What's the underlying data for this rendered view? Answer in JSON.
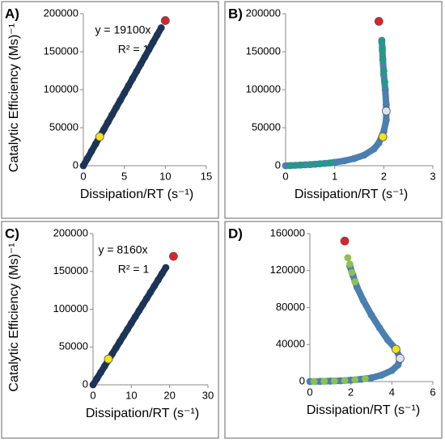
{
  "chart_data": [
    {
      "type": "scatter",
      "panel_label": "A)",
      "ylabel": "Catalytic  Efficiency (Ms)⁻¹",
      "xlabel": "Dissipation/RT (s⁻¹)",
      "annotations": [
        "y = 19100x",
        "R² = 1"
      ],
      "xlim": [
        0,
        15
      ],
      "xticks": [
        0,
        5,
        10,
        15
      ],
      "ylim": [
        0,
        200000
      ],
      "yticks": [
        0,
        50000,
        100000,
        150000,
        200000
      ],
      "series": [
        {
          "color": "#1c3557",
          "line": true,
          "x": [
            0,
            0.5,
            1,
            1.5,
            2,
            2.5,
            3,
            3.5,
            4,
            4.5,
            5,
            5.5,
            6,
            6.5,
            7,
            7.5,
            8,
            8.5,
            9,
            9.5
          ],
          "values": [
            0,
            9550,
            19100,
            28650,
            38200,
            47750,
            57300,
            66850,
            76400,
            85950,
            95500,
            105050,
            114600,
            124150,
            133700,
            143250,
            152800,
            162350,
            171900,
            181450
          ]
        },
        {
          "color": "#f2e21b",
          "x": [
            2
          ],
          "values": [
            38200
          ]
        },
        {
          "color": "#e0202a",
          "x": [
            10
          ],
          "values": [
            191000
          ]
        }
      ]
    },
    {
      "type": "scatter",
      "panel_label": "B)",
      "xlabel": "Dissipation/RT (s⁻¹)",
      "xlim": [
        0,
        3
      ],
      "xticks": [
        0,
        1,
        2,
        3
      ],
      "ylim": [
        0,
        200000
      ],
      "yticks": [
        0,
        50000,
        100000,
        150000,
        200000
      ],
      "series": [
        {
          "color": "#4a7fb0",
          "line": true,
          "x": [
            0,
            0.2,
            0.4,
            0.6,
            0.8,
            1.0,
            1.2,
            1.4,
            1.6,
            1.8,
            1.9,
            2.0,
            2.05,
            2.05,
            2.03,
            2.0,
            1.98,
            1.97,
            1.96
          ],
          "values": [
            0,
            500,
            1200,
            2000,
            3000,
            4500,
            6500,
            9500,
            14000,
            22000,
            30000,
            45000,
            60000,
            80000,
            100000,
            120000,
            140000,
            155000,
            165000
          ]
        },
        {
          "color": "#1e9e7e",
          "x": [
            0.1,
            0.3,
            0.5,
            0.7,
            0.9,
            2.02,
            2.0,
            1.98,
            1.97,
            1.96
          ],
          "values": [
            300,
            800,
            1500,
            2500,
            3600,
            110000,
            125000,
            140000,
            152000,
            163000
          ]
        },
        {
          "color": "#d9e1f2",
          "x": [
            2.05
          ],
          "values": [
            72000
          ]
        },
        {
          "color": "#f2e21b",
          "x": [
            1.98
          ],
          "values": [
            38000
          ]
        },
        {
          "color": "#e0202a",
          "x": [
            1.9
          ],
          "values": [
            190000
          ]
        }
      ]
    },
    {
      "type": "scatter",
      "panel_label": "C)",
      "ylabel": "Catalytic  Efficiency (Ms)⁻¹",
      "xlabel": "Dissipation/RT (s⁻¹)",
      "annotations": [
        "y = 8160x",
        "R² = 1"
      ],
      "xlim": [
        0,
        30
      ],
      "xticks": [
        0,
        10,
        20,
        30
      ],
      "ylim": [
        0,
        200000
      ],
      "yticks": [
        0,
        50000,
        100000,
        150000,
        200000
      ],
      "series": [
        {
          "color": "#1c3557",
          "line": true,
          "x": [
            0,
            1,
            2,
            3,
            4,
            5,
            6,
            7,
            8,
            9,
            10,
            11,
            12,
            13,
            14,
            15,
            16,
            17,
            18,
            19
          ],
          "values": [
            0,
            8160,
            16320,
            24480,
            32640,
            40800,
            48960,
            57120,
            65280,
            73440,
            81600,
            89760,
            97920,
            106080,
            114240,
            122400,
            130560,
            138720,
            146880,
            155040
          ]
        },
        {
          "color": "#f2e21b",
          "x": [
            4
          ],
          "values": [
            34000
          ]
        },
        {
          "color": "#e0202a",
          "x": [
            21
          ],
          "values": [
            170000
          ]
        }
      ]
    },
    {
      "type": "scatter",
      "panel_label": "D)",
      "xlabel": "Dissipation/RT (s⁻¹)",
      "xlim": [
        0,
        6
      ],
      "xticks": [
        0,
        2,
        4,
        6
      ],
      "ylim": [
        0,
        160000
      ],
      "yticks": [
        0,
        40000,
        80000,
        120000,
        160000
      ],
      "series": [
        {
          "color": "#4a7fb0",
          "line": true,
          "x": [
            0,
            0.5,
            1,
            1.5,
            2,
            2.5,
            3,
            3.5,
            4,
            4.3,
            4.4,
            4.2,
            3.8,
            3.4,
            3.0,
            2.6,
            2.3,
            2.1,
            1.95
          ],
          "values": [
            0,
            200,
            500,
            900,
            1500,
            2500,
            4000,
            7000,
            12000,
            18000,
            25000,
            35000,
            45000,
            58000,
            72000,
            88000,
            102000,
            115000,
            125000
          ]
        },
        {
          "color": "#8cc152",
          "x": [
            0.2,
            0.7,
            1.2,
            1.7,
            2.2,
            2.7,
            2.2,
            2.05,
            1.95,
            1.85
          ],
          "values": [
            100,
            350,
            700,
            1200,
            2000,
            3200,
            108000,
            118000,
            127000,
            134000
          ]
        },
        {
          "color": "#d9e1f2",
          "x": [
            4.4
          ],
          "values": [
            25000
          ]
        },
        {
          "color": "#f2e21b",
          "x": [
            4.2
          ],
          "values": [
            35000
          ]
        },
        {
          "color": "#e0202a",
          "x": [
            1.7
          ],
          "values": [
            152000
          ]
        }
      ]
    }
  ]
}
